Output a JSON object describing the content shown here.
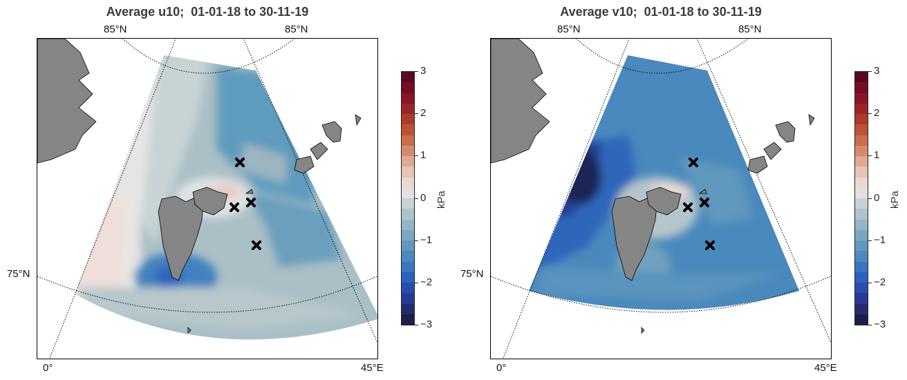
{
  "panels": [
    {
      "title": "Average u10;  01-01-18 to 30-11-19",
      "variable": "u10",
      "period": "01-01-18 to 30-11-19",
      "colorbar_unit": "kPa"
    },
    {
      "title": "Average v10;  01-01-18 to 30-11-19",
      "variable": "v10",
      "period": "01-01-18 to 30-11-19",
      "colorbar_unit": "kPa"
    }
  ],
  "geo_labels": {
    "lat_85": "85°N",
    "lat_75": "75°N",
    "lon_0": "0°",
    "lon_45": "45°E"
  },
  "colorbar": {
    "ticks": [
      "3",
      "2",
      "1",
      "0",
      "−1",
      "−2",
      "−3"
    ],
    "range": [
      -3,
      3
    ],
    "levels": 24,
    "colors": [
      "#1b1f4b",
      "#232c6e",
      "#283a93",
      "#2a4caf",
      "#2b62c0",
      "#3b77bf",
      "#4d89be",
      "#6199bc",
      "#78a7c1",
      "#93b6c6",
      "#aec3cb",
      "#c8d2d4",
      "#e3e1df",
      "#ecd8d3",
      "#e7c3b6",
      "#dfa992",
      "#d68b6e",
      "#ca6e4f",
      "#bc5237",
      "#ad3a2a",
      "#9c2428",
      "#891628",
      "#740d25",
      "#5a0820"
    ]
  },
  "stations": 4
}
